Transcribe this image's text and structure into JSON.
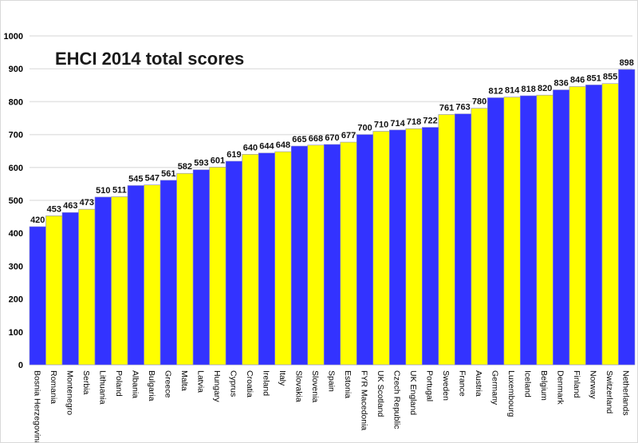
{
  "chart_data": {
    "type": "bar",
    "title": "EHCI 2014 total scores",
    "xlabel": "",
    "ylabel": "",
    "ylim": [
      0,
      1000
    ],
    "yticks": [
      0,
      100,
      200,
      300,
      400,
      500,
      600,
      700,
      800,
      900,
      1000
    ],
    "grid": true,
    "legend": "none",
    "bar_colors": [
      "#3333ff",
      "#ffff00"
    ],
    "categories": [
      "Bosnia Herzegovina",
      "Romania",
      "Montenegro",
      "Serbia",
      "Lithuania",
      "Poland",
      "Albania",
      "Bulgaria",
      "Greece",
      "Malta",
      "Latvia",
      "Hungary",
      "Cyprus",
      "Croatia",
      "Ireland",
      "Italy",
      "Slovakia",
      "Slovenia",
      "Spain",
      "Estonia",
      "FYR Macedonia",
      "UK Scotland",
      "Czech Republic",
      "UK England",
      "Portugal",
      "Sweden",
      "France",
      "Austria",
      "Germany",
      "Luxembourg",
      "Iceland",
      "Belgium",
      "Denmark",
      "Finland",
      "Norway",
      "Switzerland",
      "Netherlands"
    ],
    "values": [
      420,
      453,
      463,
      473,
      510,
      511,
      545,
      547,
      561,
      582,
      593,
      601,
      619,
      640,
      644,
      648,
      665,
      668,
      670,
      677,
      700,
      710,
      714,
      718,
      722,
      761,
      763,
      780,
      812,
      814,
      818,
      820,
      836,
      846,
      851,
      855,
      898
    ]
  }
}
